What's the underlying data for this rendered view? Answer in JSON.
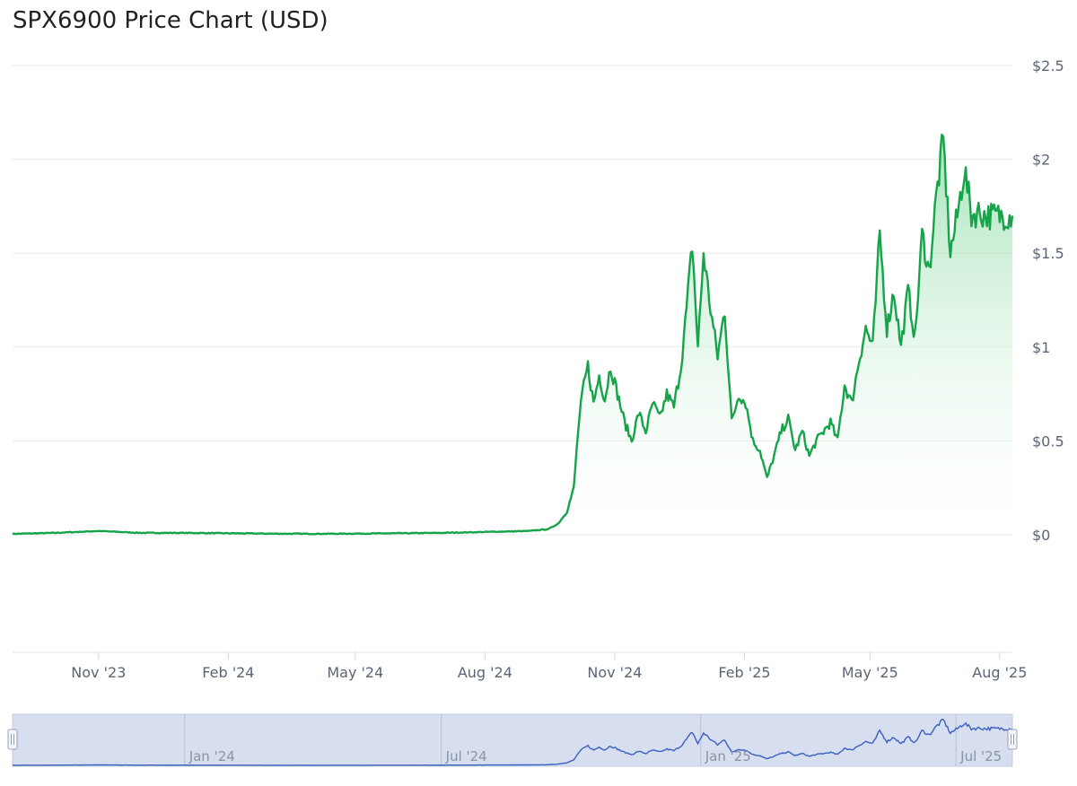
{
  "title": "SPX6900 Price Chart (USD)",
  "colors": {
    "line": "#16a34a",
    "fill_top": "#86d9a0",
    "navigator_fill": "#d6deef",
    "navigator_line": "#3b5fc0"
  },
  "chart_data": {
    "type": "area",
    "title": "SPX6900 Price Chart (USD)",
    "xlabel": "",
    "ylabel": "",
    "ylim": [
      -0.63,
      2.5
    ],
    "y_ticks": [
      "$0",
      "$0.5",
      "$1",
      "$1.5",
      "$2",
      "$2.5"
    ],
    "y_tick_values": [
      0,
      0.5,
      1,
      1.5,
      2,
      2.5
    ],
    "x_ticks": [
      "Nov '23",
      "Feb '24",
      "May '24",
      "Aug '24",
      "Nov '24",
      "Feb '25",
      "May '25",
      "Aug '25"
    ],
    "x_range": [
      "2023-09-01",
      "2025-08-10"
    ],
    "grid": true,
    "legend": "none",
    "series": [
      {
        "x": [
          "2023-09-01",
          "2023-10-01",
          "2023-11-01",
          "2023-12-01",
          "2024-01-01",
          "2024-02-01",
          "2024-03-01",
          "2024-04-01",
          "2024-05-01",
          "2024-06-01",
          "2024-07-01",
          "2024-08-01",
          "2024-09-01",
          "2024-09-15",
          "2024-09-22",
          "2024-09-28",
          "2024-10-03",
          "2024-10-06",
          "2024-10-09",
          "2024-10-13",
          "2024-10-17",
          "2024-10-21",
          "2024-10-25",
          "2024-10-29",
          "2024-11-03",
          "2024-11-08",
          "2024-11-13",
          "2024-11-18",
          "2024-11-23",
          "2024-11-28",
          "2024-12-03",
          "2024-12-08",
          "2024-12-13",
          "2024-12-18",
          "2024-12-22",
          "2024-12-26",
          "2024-12-30",
          "2025-01-03",
          "2025-01-08",
          "2025-01-13",
          "2025-01-18",
          "2025-01-23",
          "2025-01-28",
          "2025-02-02",
          "2025-02-07",
          "2025-02-12",
          "2025-02-17",
          "2025-02-22",
          "2025-02-27",
          "2025-03-04",
          "2025-03-09",
          "2025-03-14",
          "2025-03-19",
          "2025-03-24",
          "2025-03-29",
          "2025-04-03",
          "2025-04-08",
          "2025-04-13",
          "2025-04-18",
          "2025-04-23",
          "2025-04-28",
          "2025-05-03",
          "2025-05-08",
          "2025-05-13",
          "2025-05-18",
          "2025-05-23",
          "2025-05-28",
          "2025-06-02",
          "2025-06-07",
          "2025-06-12",
          "2025-06-17",
          "2025-06-22",
          "2025-06-27",
          "2025-07-02",
          "2025-07-07",
          "2025-07-12",
          "2025-07-17",
          "2025-07-22",
          "2025-07-27",
          "2025-08-01",
          "2025-08-06",
          "2025-08-10"
        ],
        "values": [
          0.005,
          0.01,
          0.02,
          0.01,
          0.01,
          0.008,
          0.006,
          0.005,
          0.006,
          0.008,
          0.01,
          0.015,
          0.02,
          0.03,
          0.06,
          0.12,
          0.25,
          0.55,
          0.75,
          0.9,
          0.7,
          0.85,
          0.72,
          0.9,
          0.75,
          0.6,
          0.5,
          0.65,
          0.55,
          0.7,
          0.62,
          0.75,
          0.68,
          0.9,
          1.2,
          1.55,
          1.0,
          1.5,
          1.2,
          0.95,
          1.2,
          0.6,
          0.75,
          0.7,
          0.5,
          0.45,
          0.3,
          0.42,
          0.55,
          0.62,
          0.45,
          0.55,
          0.42,
          0.5,
          0.55,
          0.6,
          0.5,
          0.8,
          0.7,
          0.92,
          1.1,
          1.0,
          1.6,
          1.1,
          1.3,
          1.0,
          1.3,
          1.05,
          1.6,
          1.4,
          1.8,
          2.1,
          1.5,
          1.7,
          1.95,
          1.7,
          1.72,
          1.7,
          1.7,
          1.7,
          1.7,
          1.7
        ]
      }
    ],
    "navigator": {
      "x_ticks": [
        "Jan '24",
        "Jul '24",
        "Jan '25",
        "Jul '25"
      ]
    }
  }
}
